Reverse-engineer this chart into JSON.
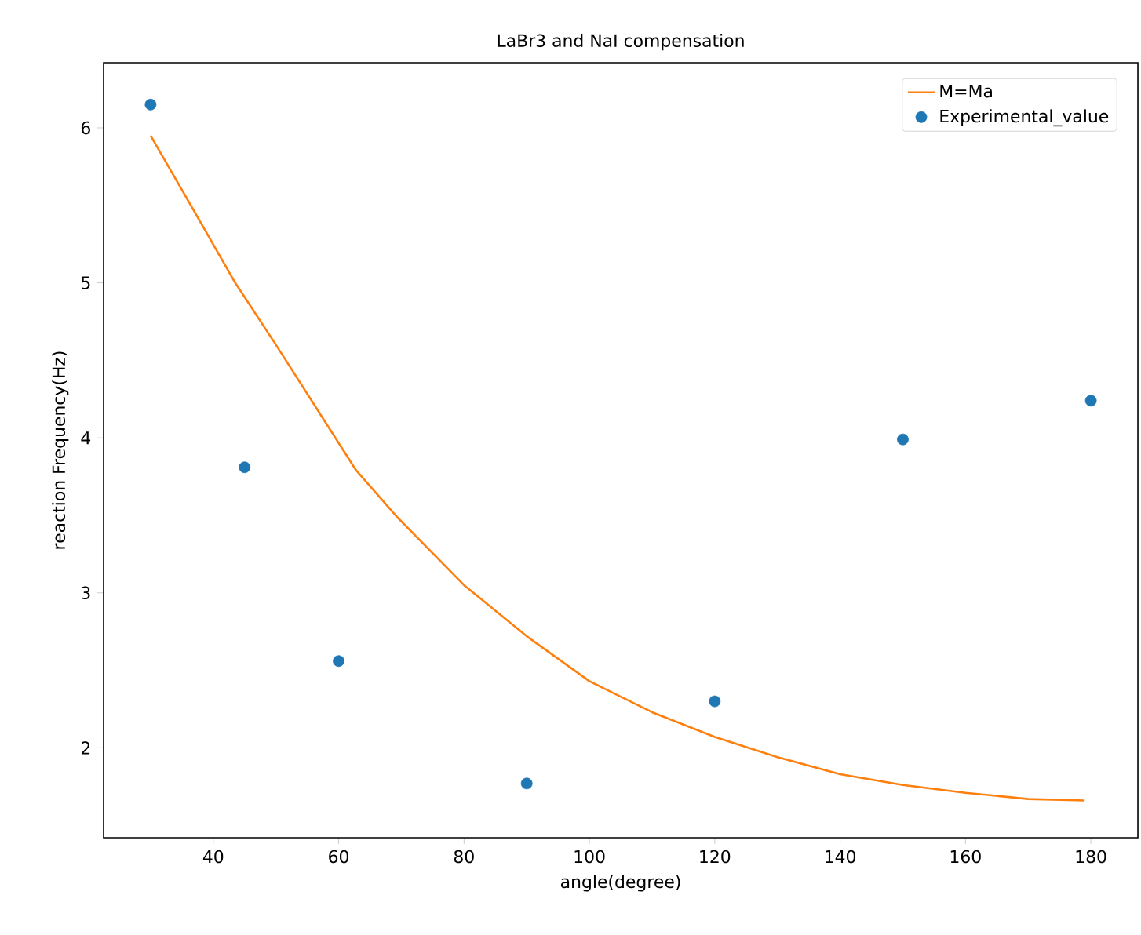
{
  "chart_data": {
    "type": "scatter",
    "title": "LaBr3 and NaI compensation",
    "xlabel": "angle(degree)",
    "ylabel": "reaction Frequency(Hz)",
    "series": [
      {
        "name": "M=Ma",
        "type": "line",
        "color": "#ff7f0e",
        "marker": "none",
        "x": [
          30,
          35,
          43.5,
          50,
          62.8,
          69.3,
          80,
          90,
          100,
          110,
          120,
          130,
          140,
          150,
          160,
          170,
          179
        ],
        "values": [
          5.95,
          5.6,
          5.0,
          4.6,
          3.79,
          3.49,
          3.05,
          2.72,
          2.43,
          2.23,
          2.07,
          1.94,
          1.83,
          1.76,
          1.71,
          1.67,
          1.66
        ]
      },
      {
        "name": "Experimental_value",
        "color": "#1f77b4",
        "marker": "circle",
        "x": [
          30,
          45,
          60,
          90,
          120,
          150,
          180
        ],
        "values": [
          6.15,
          3.81,
          2.56,
          1.77,
          2.3,
          3.99,
          4.24
        ]
      }
    ],
    "xlim": [
      22.5,
      187.5
    ],
    "ylim": [
      1.42,
      6.42
    ],
    "xticks": [
      40,
      60,
      80,
      100,
      120,
      140,
      160,
      180
    ],
    "yticks": [
      2,
      3,
      4,
      5,
      6
    ],
    "grid": false,
    "legend": "top right"
  }
}
